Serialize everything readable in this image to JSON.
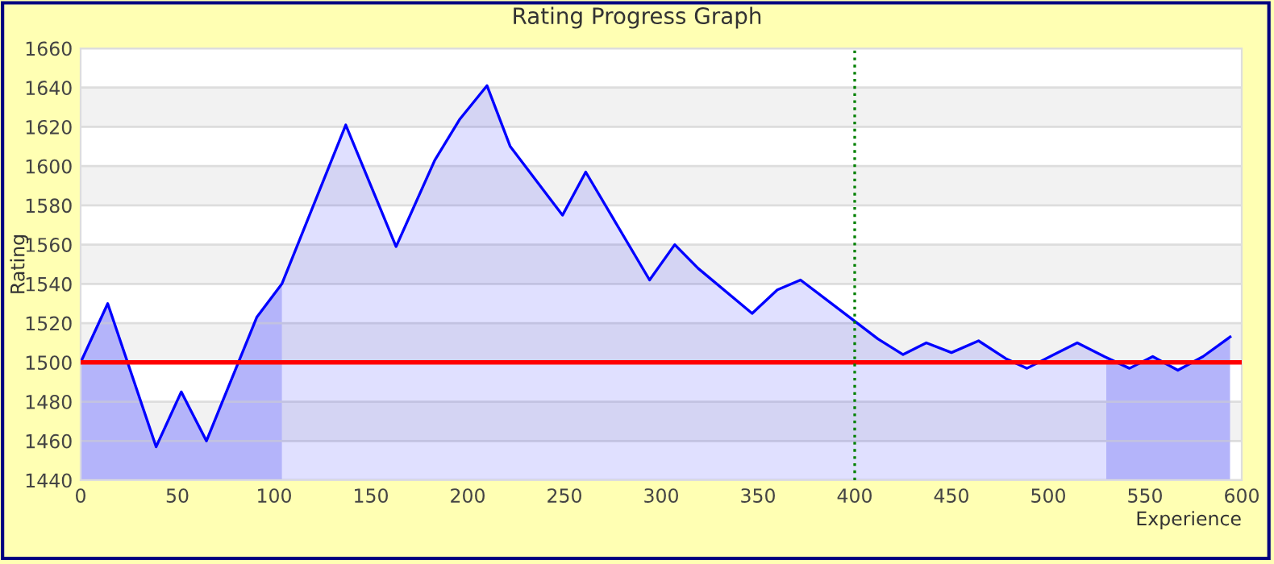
{
  "chart_data": {
    "type": "area",
    "title": "Rating Progress Graph",
    "xlabel": "Experience",
    "ylabel": "Rating",
    "series": [
      {
        "color": "#0000ff",
        "x": [
          0,
          14,
          39,
          52,
          65,
          91,
          104,
          137,
          163,
          183,
          196,
          210,
          222,
          249,
          261,
          294,
          307,
          319,
          347,
          360,
          372,
          400,
          412,
          425,
          437,
          450,
          464,
          478,
          489,
          503,
          515,
          529,
          542,
          554,
          567,
          580,
          594
        ],
        "values": [
          1500,
          1530,
          1457,
          1485,
          1460,
          1523,
          1540,
          1621,
          1559,
          1603,
          1624,
          1641,
          1610,
          1575,
          1597,
          1542,
          1560,
          1548,
          1525,
          1537,
          1542,
          1521,
          1512,
          1504,
          1510,
          1505,
          1511,
          1502,
          1497,
          1504,
          1510,
          1503,
          1497,
          1503,
          1496,
          1503,
          1513
        ]
      }
    ],
    "xlim": [
      0,
      600
    ],
    "xticks": [
      0,
      50,
      100,
      150,
      200,
      250,
      300,
      350,
      400,
      450,
      500,
      550,
      600
    ],
    "ylim": [
      1440,
      1660
    ],
    "yticks": [
      1440,
      1460,
      1480,
      1500,
      1520,
      1540,
      1560,
      1580,
      1600,
      1620,
      1640,
      1660
    ],
    "grid": "y",
    "legend": false,
    "ref_lines": [
      {
        "axis": "y",
        "value": 1500,
        "color": "#ff0000",
        "line_style": "solid"
      },
      {
        "axis": "x",
        "value": 400,
        "color": "#008000",
        "line_style": "dotted"
      }
    ],
    "bands": [
      {
        "axis": "x",
        "from": 0,
        "to": 104,
        "color": "#cdcdfa"
      },
      {
        "axis": "x",
        "from": 530,
        "to": 594,
        "color": "#cdcdfa"
      }
    ]
  }
}
